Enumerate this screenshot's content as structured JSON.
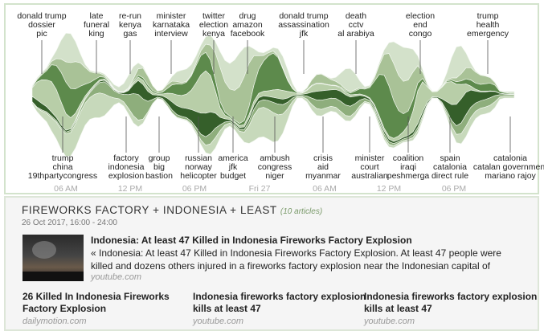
{
  "stream": {
    "top_labels": [
      [
        "donald trump",
        "dossier",
        "pic"
      ],
      [
        "late",
        "funeral",
        "king"
      ],
      [
        "re-run",
        "kenya",
        "gas"
      ],
      [
        "minister",
        "karnataka",
        "interview"
      ],
      [
        "twitter",
        "election",
        "kenya"
      ],
      [
        "drug",
        "amazon",
        "facebook"
      ],
      [
        "donald trump",
        "assassination",
        "jfk"
      ],
      [
        "death",
        "cctv",
        "al arabiya"
      ],
      [
        "election",
        "end",
        "congo"
      ],
      [
        "trump",
        "health",
        "emergency"
      ]
    ],
    "bottom_labels": [
      [
        "trump",
        "china",
        "19thpartycongress"
      ],
      [
        "factory",
        "indonesia",
        "explosion"
      ],
      [
        "group",
        "big",
        "bastion"
      ],
      [
        "russian",
        "norway",
        "helicopter"
      ],
      [
        "america",
        "jfk",
        "budget"
      ],
      [
        "ambush",
        "congress",
        "niger"
      ],
      [
        "crisis",
        "aid",
        "myanmar"
      ],
      [
        "minister",
        "court",
        "australian"
      ],
      [
        "coalition",
        "iraqi",
        "peshmerga"
      ],
      [
        "spain",
        "catalonia",
        "direct rule"
      ],
      [
        "catalonia",
        "catalan government",
        "mariano rajoy"
      ]
    ],
    "time_labels": [
      "06 AM",
      "12 PM",
      "06 PM",
      "Fri 27",
      "06 AM",
      "12 PM",
      "06 PM"
    ]
  },
  "story": {
    "title": "FIREWORKS FACTORY + INDONESIA + LEAST",
    "count": "(10 articles)",
    "date": "26 Oct 2017, 16:00 - 24:00",
    "featured": {
      "title": "Indonesia: At least 47 Killed in Indonesia Fireworks Factory Explosion",
      "snippet": [
        "« Indonesia: At least 47 Killed in Indonesia Fireworks Factory Explosion. At least 47 people were",
        "killed and dozens others injured in a fireworks factory explosion near the Indonesian capital of"
      ],
      "source": "youtube.com"
    },
    "articles": [
      {
        "title": [
          "26 Killed In Indonesia Fireworks",
          "Factory Explosion"
        ],
        "source": "dailymotion.com"
      },
      {
        "title": [
          "Indonesia fireworks factory explosion",
          "kills at least 47"
        ],
        "source": "youtube.com"
      },
      {
        "title": [
          "Indonesia fireworks factory explosion",
          "kills at least 47"
        ],
        "source": "youtube.com"
      }
    ]
  }
}
